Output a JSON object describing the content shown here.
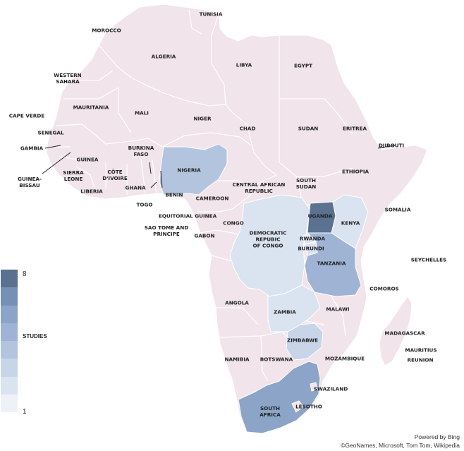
{
  "legend": {
    "max": "8",
    "min": "1",
    "label": "STUDIES",
    "scale_colors": [
      "#5a718f",
      "#7690b5",
      "#8ba4c7",
      "#9fb4d4",
      "#b3c4de",
      "#c8d4e8",
      "#dae3f0",
      "#eef2f8"
    ]
  },
  "colors": {
    "default": "#f1e4ea",
    "border": "#ffffff",
    "ocean": "#ffffff",
    "line": "#222222"
  },
  "studies": {
    "uganda": 8,
    "south_africa": 6,
    "tanzania": 5,
    "nigeria": 4,
    "zimbabwe": 3,
    "zambia": 2,
    "kenya": 2,
    "drc": 2,
    "rwanda": 2,
    "burundi": 2
  },
  "labels": {
    "tunisia": "TUNISIA",
    "morocco": "MOROCCO",
    "algeria": "ALGERIA",
    "libya": "LIBYA",
    "egypt": "EGYPT",
    "western_sahara": "WESTERN\nSAHARA",
    "mauritania": "MAURITANIA",
    "mali": "MALI",
    "niger": "NIGER",
    "chad": "CHAD",
    "sudan": "SUDAN",
    "eritrea": "ERITREA",
    "djibouti": "DJIBOUTI",
    "cape_verde": "CAPE VERDE",
    "senegal": "SENEGAL",
    "gambia": "GAMBIA",
    "guinea_bissau": "GUINEA-\nBISSAU",
    "guinea": "GUINEA",
    "sierra_leone": "SIERRA\nLEONE",
    "liberia": "LIBERIA",
    "burkina_faso": "BURKINA\nFASO",
    "cote_divoire": "CÔTE\nD'IVOIRE",
    "ghana": "GHANA",
    "togo": "TOGO",
    "benin": "BENIN",
    "nigeria": "NIGERIA",
    "ethiopia": "ETHIOPIA",
    "car": "CENTRAL AFRICAN\nREPUBLIC",
    "south_sudan": "SOUTH\nSUDAN",
    "cameroon": "CAMEROON",
    "somalia": "SOMALIA",
    "equatorial_guinea": "EQUITORIAL GUINEA",
    "sao_tome": "SAO TOME AND\nPRINCIPE",
    "congo": "CONGO",
    "gabon": "GABON",
    "drc": "DEMOCRATIC\nREPUBIC\nOF CONGO",
    "uganda": "UGANDA",
    "kenya": "KENYA",
    "rwanda": "RWANDA",
    "burundi": "BURUNDI",
    "tanzania": "TANZANIA",
    "seychelles": "SEYCHELLES",
    "comoros": "COMOROS",
    "angola": "ANGOLA",
    "zambia": "ZAMBIA",
    "malawi": "MALAWI",
    "madagascar": "MADAGASCAR",
    "mauritius": "MAURITIUS",
    "reunion": "REUNION",
    "zimbabwe": "ZIMBABWE",
    "namibia": "NAMIBIA",
    "botswana": "BOTSWANA",
    "mozambique": "MOZAMBIQUE",
    "swaziland": "SWAZILAND",
    "lesotho": "LESOTHO",
    "south_africa": "SOUTH\nAFRICA"
  },
  "credits": {
    "line1": "Powered by Bing",
    "line2": "©GeoNames, Microsoft, Tom Tom, Wikipedia"
  }
}
